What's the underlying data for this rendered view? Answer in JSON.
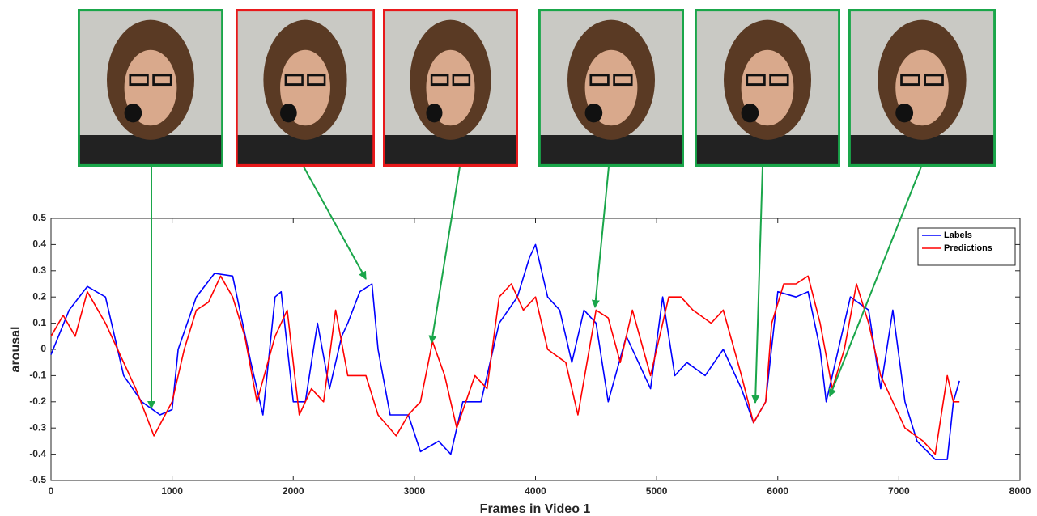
{
  "chart_data": {
    "type": "line",
    "xlabel": "Frames in Video 1",
    "ylabel": "arousal",
    "xlim": [
      0,
      8000
    ],
    "xticks": [
      0,
      1000,
      2000,
      3000,
      4000,
      5000,
      6000,
      7000,
      8000
    ],
    "ylim": [
      -0.5,
      0.5
    ],
    "yticks": [
      -0.5,
      -0.4,
      -0.3,
      -0.2,
      -0.1,
      0,
      0.1,
      0.2,
      0.3,
      0.4,
      0.5
    ],
    "grid": false,
    "legend": "upper right",
    "series": [
      {
        "name": "Labels",
        "color": "#0000ff",
        "x": [
          0,
          150,
          300,
          450,
          600,
          750,
          900,
          1000,
          1050,
          1200,
          1350,
          1500,
          1650,
          1750,
          1850,
          1900,
          2000,
          2100,
          2200,
          2300,
          2400,
          2450,
          2550,
          2650,
          2700,
          2800,
          2950,
          3050,
          3200,
          3300,
          3400,
          3550,
          3700,
          3850,
          3950,
          4000,
          4100,
          4200,
          4300,
          4400,
          4500,
          4600,
          4750,
          4850,
          4950,
          5050,
          5150,
          5250,
          5400,
          5550,
          5700,
          5800,
          5900,
          6000,
          6150,
          6250,
          6350,
          6400,
          6500,
          6600,
          6750,
          6850,
          6950,
          7050,
          7150,
          7300,
          7400,
          7450,
          7500
        ],
        "values": [
          -0.02,
          0.15,
          0.24,
          0.2,
          -0.1,
          -0.2,
          -0.25,
          -0.23,
          0.0,
          0.2,
          0.29,
          0.28,
          -0.05,
          -0.25,
          0.2,
          0.22,
          -0.2,
          -0.2,
          0.1,
          -0.15,
          0.05,
          0.1,
          0.22,
          0.25,
          0.0,
          -0.25,
          -0.25,
          -0.39,
          -0.35,
          -0.4,
          -0.2,
          -0.2,
          0.1,
          0.2,
          0.35,
          0.4,
          0.2,
          0.15,
          -0.05,
          0.15,
          0.1,
          -0.2,
          0.05,
          -0.05,
          -0.15,
          0.2,
          -0.1,
          -0.05,
          -0.1,
          0.0,
          -0.15,
          -0.28,
          -0.2,
          0.22,
          0.2,
          0.22,
          0.0,
          -0.2,
          0.0,
          0.2,
          0.15,
          -0.15,
          0.15,
          -0.2,
          -0.35,
          -0.42,
          -0.42,
          -0.2,
          -0.12
        ]
      },
      {
        "name": "Predictions",
        "color": "#ff0000",
        "x": [
          0,
          100,
          200,
          300,
          450,
          550,
          700,
          850,
          1000,
          1100,
          1200,
          1300,
          1400,
          1500,
          1600,
          1700,
          1850,
          1950,
          2050,
          2150,
          2250,
          2350,
          2450,
          2600,
          2700,
          2850,
          2950,
          3050,
          3150,
          3250,
          3350,
          3500,
          3600,
          3700,
          3800,
          3900,
          4000,
          4100,
          4250,
          4350,
          4500,
          4600,
          4700,
          4800,
          4950,
          5100,
          5200,
          5300,
          5450,
          5550,
          5700,
          5800,
          5900,
          5950,
          6050,
          6150,
          6250,
          6350,
          6450,
          6550,
          6650,
          6750,
          6850,
          6950,
          7050,
          7200,
          7300,
          7400,
          7450,
          7500
        ],
        "values": [
          0.05,
          0.13,
          0.05,
          0.22,
          0.1,
          0.0,
          -0.15,
          -0.33,
          -0.2,
          0.0,
          0.15,
          0.18,
          0.28,
          0.2,
          0.05,
          -0.2,
          0.05,
          0.15,
          -0.25,
          -0.15,
          -0.2,
          0.15,
          -0.1,
          -0.1,
          -0.25,
          -0.33,
          -0.25,
          -0.2,
          0.03,
          -0.1,
          -0.3,
          -0.1,
          -0.15,
          0.2,
          0.25,
          0.15,
          0.2,
          0.0,
          -0.05,
          -0.25,
          0.15,
          0.12,
          -0.05,
          0.15,
          -0.1,
          0.2,
          0.2,
          0.15,
          0.1,
          0.15,
          -0.1,
          -0.28,
          -0.2,
          0.1,
          0.25,
          0.25,
          0.28,
          0.1,
          -0.15,
          0.0,
          0.25,
          0.1,
          -0.1,
          -0.2,
          -0.3,
          -0.35,
          -0.4,
          -0.1,
          -0.2,
          -0.2
        ]
      }
    ]
  }
}
